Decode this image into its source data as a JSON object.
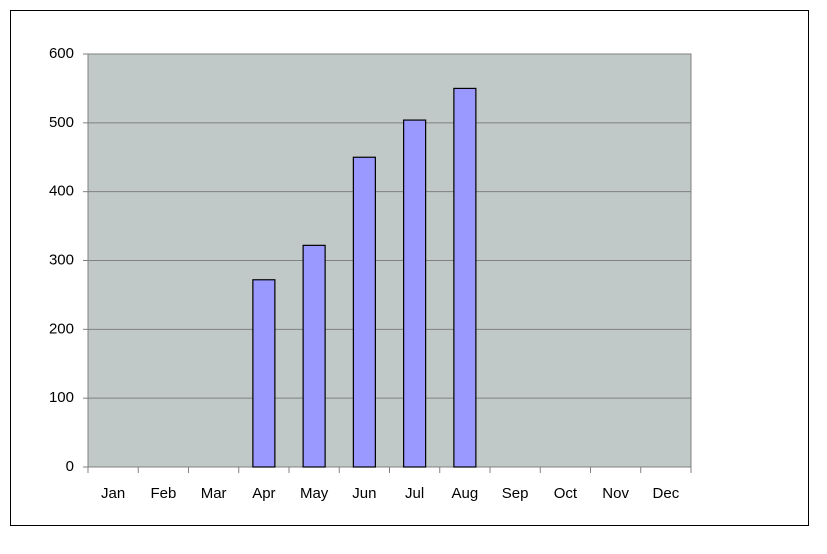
{
  "chart_data": {
    "type": "bar",
    "categories": [
      "Jan",
      "Feb",
      "Mar",
      "Apr",
      "May",
      "Jun",
      "Jul",
      "Aug",
      "Sep",
      "Oct",
      "Nov",
      "Dec"
    ],
    "values": [
      null,
      null,
      null,
      272,
      322,
      450,
      504,
      550,
      null,
      null,
      null,
      null
    ],
    "color": "#9999ff",
    "ylim": [
      0,
      600
    ],
    "yticks": [
      0,
      100,
      200,
      300,
      400,
      500,
      600
    ],
    "grid": true
  }
}
